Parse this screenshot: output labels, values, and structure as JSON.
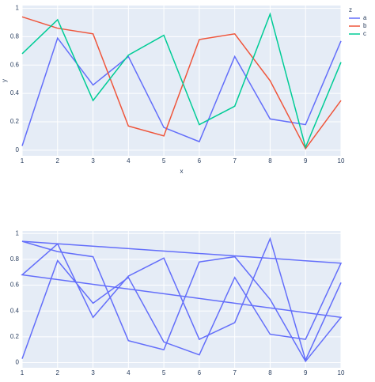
{
  "chart_data": [
    {
      "type": "line",
      "x_label": "x",
      "y_label": "y",
      "legend_title": "z",
      "legend": "top-right",
      "x": [
        1,
        2,
        3,
        4,
        5,
        6,
        7,
        8,
        9,
        10
      ],
      "series": [
        {
          "name": "a",
          "color": "#636efa",
          "values": [
            0.03,
            0.79,
            0.46,
            0.66,
            0.16,
            0.06,
            0.66,
            0.22,
            0.18,
            0.77
          ]
        },
        {
          "name": "b",
          "color": "#EF553B",
          "values": [
            0.94,
            0.86,
            0.82,
            0.17,
            0.1,
            0.78,
            0.82,
            0.49,
            0.01,
            0.35
          ]
        },
        {
          "name": "c",
          "color": "#00cc96",
          "values": [
            0.68,
            0.92,
            0.35,
            0.67,
            0.81,
            0.18,
            0.31,
            0.96,
            0.02,
            0.62
          ]
        }
      ],
      "xlim": [
        1,
        10
      ],
      "xticks": [
        1,
        2,
        3,
        4,
        5,
        6,
        7,
        8,
        9,
        10
      ],
      "ylim": [
        -0.04,
        1.02
      ],
      "yticks": [
        0,
        0.2,
        0.4,
        0.6,
        0.8,
        1
      ],
      "grid": true
    },
    {
      "type": "line",
      "x": [
        1,
        2,
        3,
        4,
        5,
        6,
        7,
        8,
        9,
        10,
        1,
        2,
        3,
        4,
        5,
        6,
        7,
        8,
        9,
        10,
        1,
        2,
        3,
        4,
        5,
        6,
        7,
        8,
        9,
        10
      ],
      "series": [
        {
          "color": "#636efa",
          "values": [
            0.03,
            0.79,
            0.46,
            0.66,
            0.16,
            0.06,
            0.66,
            0.22,
            0.18,
            0.77,
            0.94,
            0.86,
            0.82,
            0.17,
            0.1,
            0.78,
            0.82,
            0.49,
            0.01,
            0.35,
            0.68,
            0.92,
            0.35,
            0.67,
            0.81,
            0.18,
            0.31,
            0.96,
            0.02,
            0.62
          ]
        }
      ],
      "xlim": [
        1,
        10
      ],
      "xticks": [
        1,
        2,
        3,
        4,
        5,
        6,
        7,
        8,
        9,
        10
      ],
      "ylim": [
        -0.04,
        1.02
      ],
      "yticks": [
        0,
        0.2,
        0.4,
        0.6,
        0.8,
        1
      ],
      "grid": true
    }
  ]
}
